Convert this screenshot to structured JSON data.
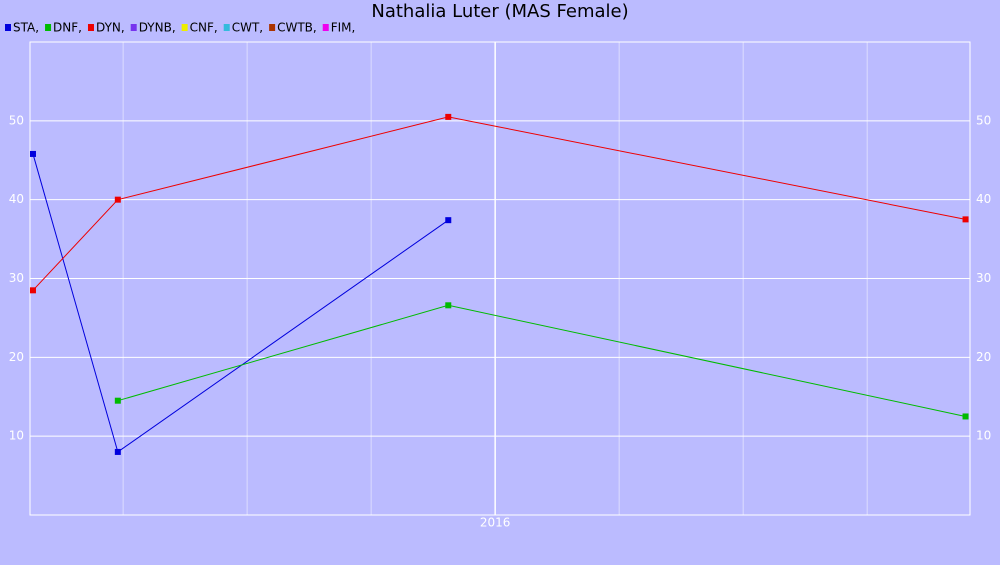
{
  "chart_data": {
    "type": "line",
    "title": "Nathalia Luter (MAS Female)",
    "x": [
      2015.379,
      2015.493,
      2015.937,
      2016.632
    ],
    "xlim": [
      2015.375,
      2016.638
    ],
    "xticks": [
      2016
    ],
    "ylim": [
      0,
      60
    ],
    "yticks": [
      10,
      20,
      30,
      40,
      50
    ],
    "grid": true,
    "series": [
      {
        "name": "STA,",
        "color": "#0000dd",
        "values": [
          45.8,
          8.0,
          37.4,
          null
        ]
      },
      {
        "name": "DNF,",
        "color": "#00bb00",
        "values": [
          null,
          14.5,
          26.6,
          12.5
        ]
      },
      {
        "name": "DYN,",
        "color": "#ee0000",
        "values": [
          28.5,
          40.0,
          50.5,
          37.5
        ]
      },
      {
        "name": "DYNB,",
        "color": "#7733ee",
        "values": [
          null,
          null,
          null,
          null
        ]
      },
      {
        "name": "CNF,",
        "color": "#eeee00",
        "values": [
          null,
          null,
          null,
          null
        ]
      },
      {
        "name": "CWT,",
        "color": "#33bbdd",
        "values": [
          null,
          null,
          null,
          null
        ]
      },
      {
        "name": "CWTB,",
        "color": "#aa3300",
        "values": [
          null,
          null,
          null,
          null
        ]
      },
      {
        "name": "FIM,",
        "color": "#ee00ee",
        "values": [
          null,
          null,
          null,
          null
        ]
      }
    ]
  }
}
